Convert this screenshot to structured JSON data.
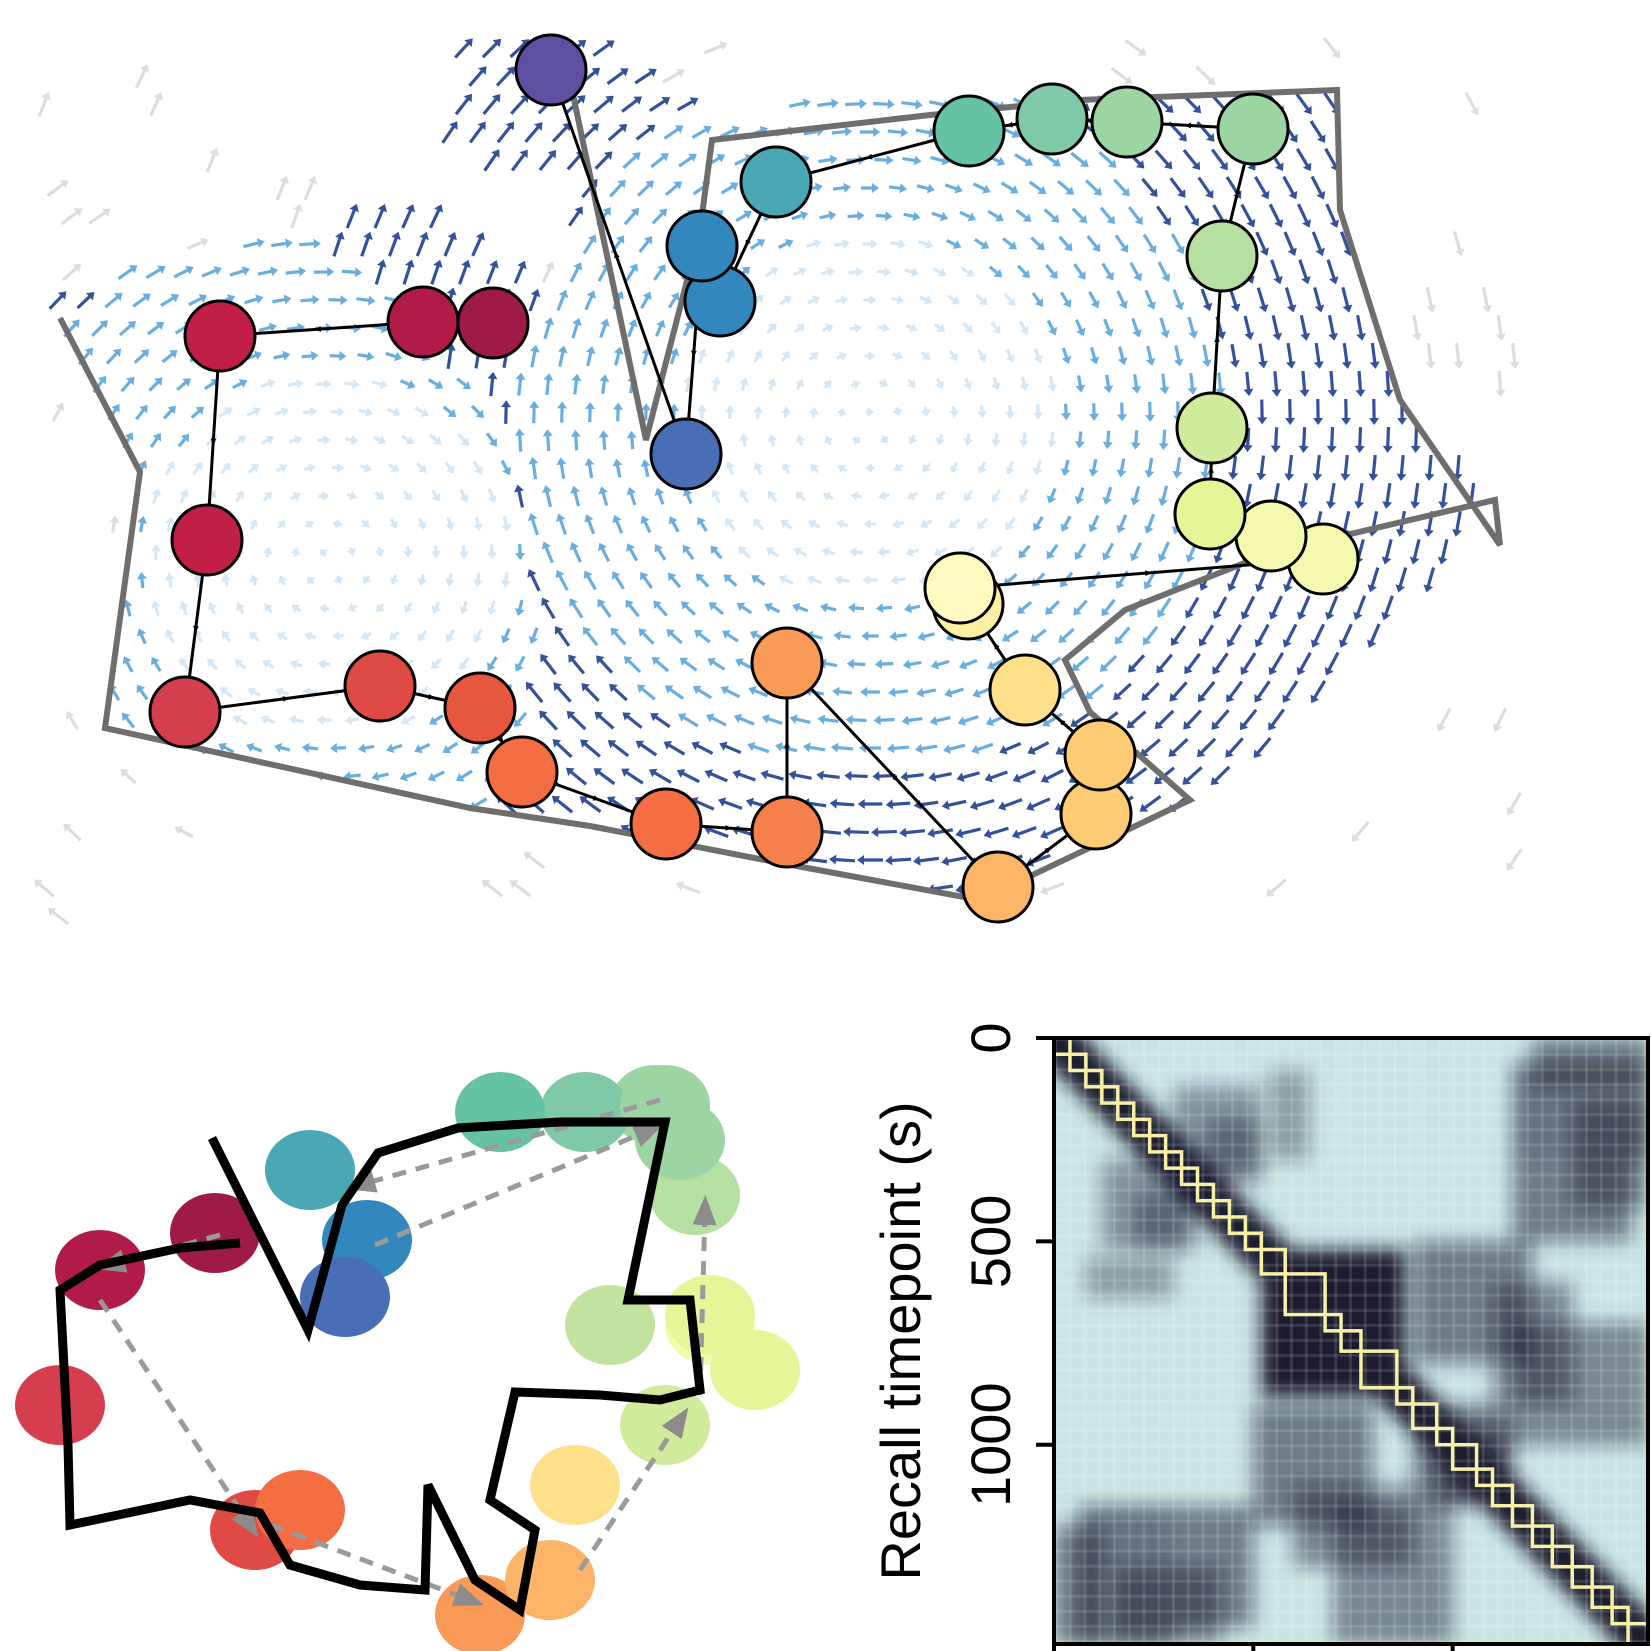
{
  "colors": {
    "node_palette": [
      "#9e1b47",
      "#b01c47",
      "#c21f48",
      "#d53e4f",
      "#e04a44",
      "#e8583e",
      "#f46d43",
      "#f6804b",
      "#f99a57",
      "#fcb466",
      "#fdcb74",
      "#fee08b",
      "#fef0a2",
      "#fffac0",
      "#f4f9ae",
      "#e6f598",
      "#cfeb9b",
      "#b5e0a2",
      "#9cd4a4",
      "#7fc9a6",
      "#66c2a5",
      "#4aa8b5",
      "#3288bd",
      "#4a6eb6",
      "#5e4fa2"
    ],
    "arrow_light": "#cfe4f5",
    "arrow_mid": "#5aa5dc",
    "arrow_dark": "#1d3f8f",
    "arrow_gray": "#d9d9d9",
    "trajectory": "#6e6e6e",
    "heatmap_dark": "#1a1a2e",
    "heatmap_light": "#c9e4e4",
    "event_box": "#f8f0a6"
  },
  "heatmap": {
    "ylabel": "Recall timepoint (s)",
    "yticks": [
      "0",
      "500",
      "1000"
    ],
    "ytick_values": [
      0,
      500,
      1000
    ],
    "ylim": [
      0,
      1490
    ],
    "xticks": [
      "",
      "",
      ""
    ],
    "events": [
      [
        0,
        40
      ],
      [
        40,
        80
      ],
      [
        80,
        120
      ],
      [
        120,
        160
      ],
      [
        160,
        200
      ],
      [
        200,
        240
      ],
      [
        240,
        280
      ],
      [
        280,
        320
      ],
      [
        320,
        360
      ],
      [
        360,
        400
      ],
      [
        400,
        440
      ],
      [
        440,
        480
      ],
      [
        480,
        520
      ],
      [
        520,
        580
      ],
      [
        580,
        680
      ],
      [
        680,
        720
      ],
      [
        720,
        770
      ],
      [
        770,
        860
      ],
      [
        860,
        900
      ],
      [
        900,
        960
      ],
      [
        960,
        1000
      ],
      [
        1000,
        1060
      ],
      [
        1060,
        1100
      ],
      [
        1100,
        1150
      ],
      [
        1150,
        1200
      ],
      [
        1200,
        1250
      ],
      [
        1250,
        1300
      ],
      [
        1300,
        1350
      ],
      [
        1350,
        1400
      ],
      [
        1400,
        1440
      ],
      [
        1440,
        1490
      ]
    ]
  }
}
